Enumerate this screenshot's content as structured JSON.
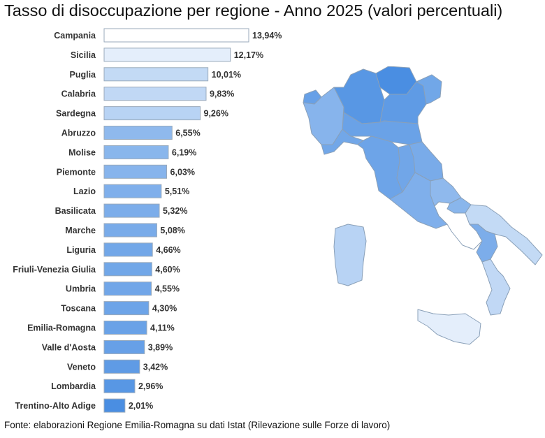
{
  "title": "Tasso di disoccupazione per regione - Anno 2025 (valori percentuali)",
  "source": "Fonte: elaborazioni Regione Emilia-Romagna su dati Istat (Rilevazione sulle Forze di lavoro)",
  "chart_data": {
    "type": "bar",
    "orientation": "horizontal",
    "title": "Tasso di disoccupazione per regione - Anno 2025 (valori percentuali)",
    "categories": [
      "Campania",
      "Sicilia",
      "Puglia",
      "Calabria",
      "Sardegna",
      "Abruzzo",
      "Molise",
      "Piemonte",
      "Lazio",
      "Basilicata",
      "Marche",
      "Liguria",
      "Friuli-Venezia Giulia",
      "Umbria",
      "Toscana",
      "Emilia-Romagna",
      "Valle d'Aosta",
      "Veneto",
      "Lombardia",
      "Trentino-Alto Adige"
    ],
    "values": [
      13.94,
      12.17,
      10.01,
      9.83,
      9.26,
      6.55,
      6.19,
      6.03,
      5.51,
      5.32,
      5.08,
      4.66,
      4.6,
      4.55,
      4.3,
      4.11,
      3.89,
      3.42,
      2.96,
      2.01
    ],
    "value_labels": [
      "13,94%",
      "12,17%",
      "10,01%",
      "9,83%",
      "9,26%",
      "6,55%",
      "6,19%",
      "6,03%",
      "5,51%",
      "5,32%",
      "5,08%",
      "4,66%",
      "4,60%",
      "4,55%",
      "4,30%",
      "4,11%",
      "3,89%",
      "3,42%",
      "2,96%",
      "2,01%"
    ],
    "xlim": [
      0,
      13.94
    ],
    "grid": false,
    "legend": "none",
    "color_scale": "low value = saturated blue, high value = near white",
    "colors": {
      "low": "#4a8ee2",
      "high": "#ffffff",
      "border": "#9aaabb"
    }
  },
  "map": {
    "type": "choropleth",
    "regions": [
      "Valle d'Aosta",
      "Piemonte",
      "Lombardia",
      "Trentino-Alto Adige",
      "Veneto",
      "Friuli-Venezia Giulia",
      "Liguria",
      "Emilia-Romagna",
      "Toscana",
      "Umbria",
      "Marche",
      "Lazio",
      "Abruzzo",
      "Molise",
      "Campania",
      "Puglia",
      "Basilicata",
      "Calabria",
      "Sicilia",
      "Sardegna"
    ]
  }
}
